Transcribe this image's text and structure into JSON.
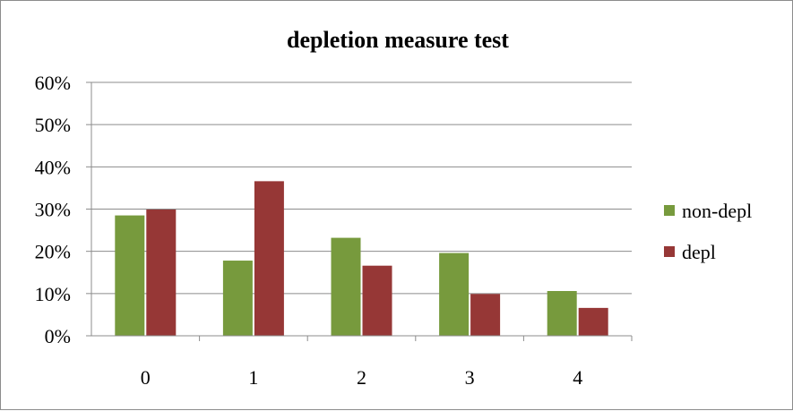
{
  "chart_data": {
    "type": "bar",
    "title": "depletion measure test",
    "xlabel": "",
    "ylabel": "",
    "categories": [
      "0",
      "1",
      "2",
      "3",
      "4"
    ],
    "series": [
      {
        "name": "non-depl",
        "color": "#779a3d",
        "values": [
          28.5,
          17.8,
          23.2,
          19.6,
          10.6
        ]
      },
      {
        "name": "depl",
        "color": "#963736",
        "values": [
          29.9,
          36.6,
          16.6,
          9.9,
          6.6
        ]
      }
    ],
    "ylim": [
      0,
      60
    ],
    "yticks": [
      "0%",
      "10%",
      "20%",
      "30%",
      "40%",
      "50%",
      "60%"
    ],
    "grid": true,
    "legend_position": "right"
  }
}
